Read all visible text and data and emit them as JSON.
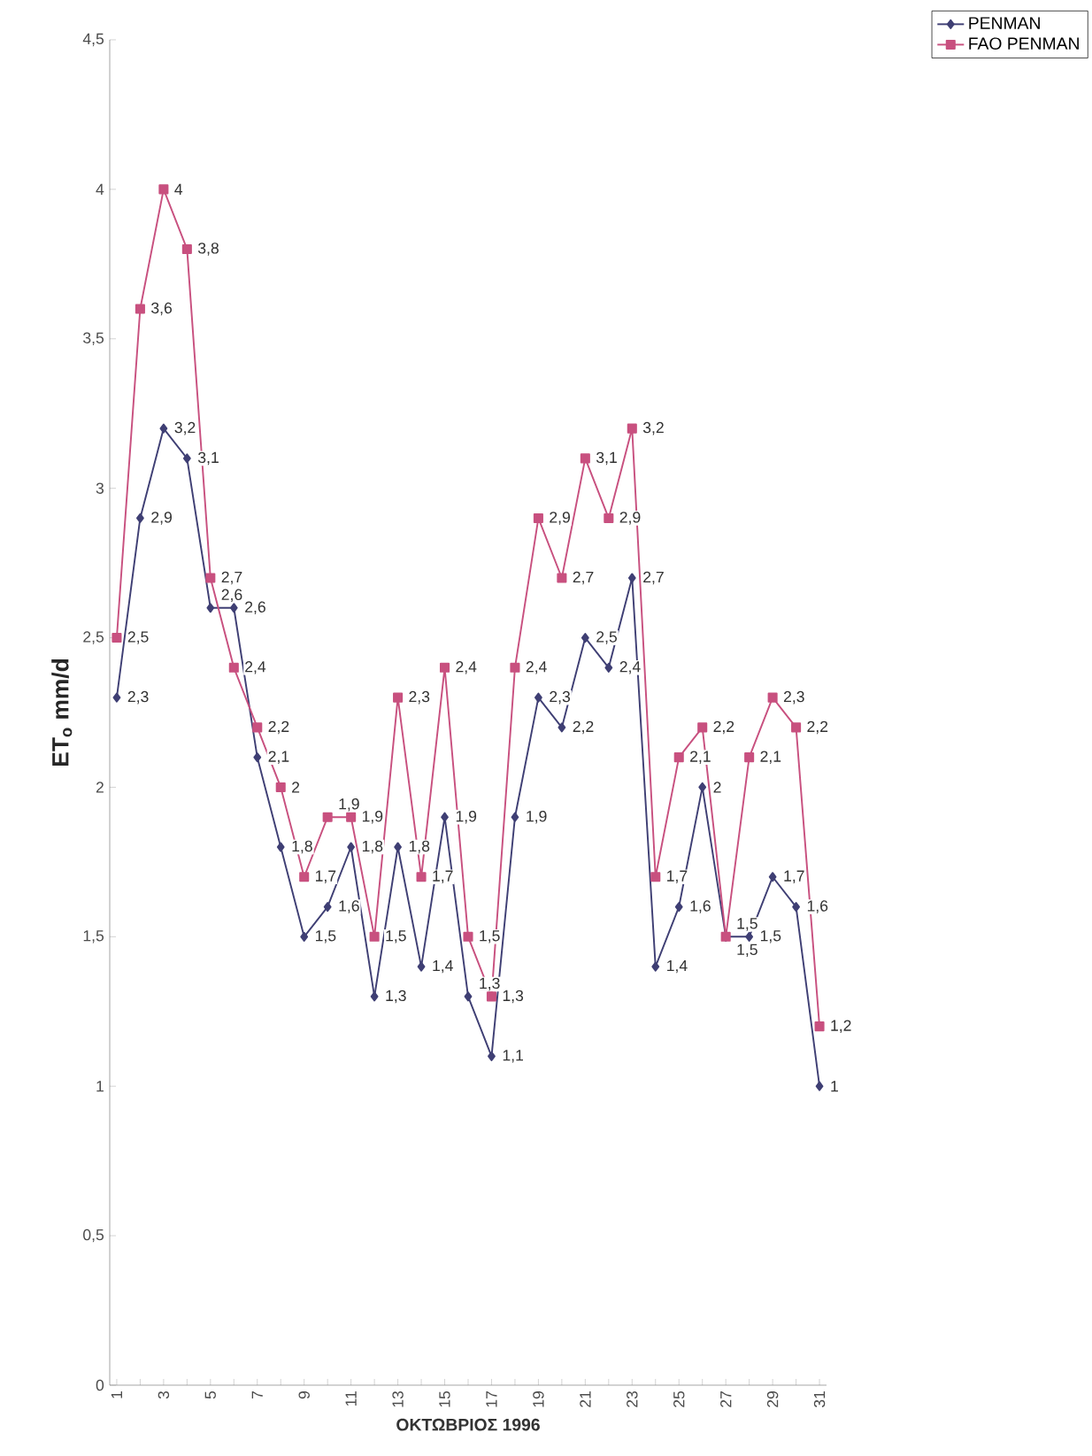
{
  "chart_data": {
    "type": "line",
    "xlabel": "ΟΚΤΩΒΡΙΟΣ 1996",
    "ylabel": "ET$_{o}$ mm/d",
    "categories": [
      "1",
      null,
      "3",
      null,
      "5",
      null,
      "7",
      null,
      "9",
      null,
      "11",
      null,
      "13",
      null,
      "15",
      null,
      "17",
      null,
      "19",
      null,
      "21",
      null,
      "23",
      null,
      "25",
      null,
      "27",
      null,
      "29",
      null,
      "31"
    ],
    "ylim": [
      0,
      4.5
    ],
    "yticks": [
      {
        "value": 0,
        "label": "0"
      },
      {
        "value": 0.5,
        "label": "0,5"
      },
      {
        "value": 1,
        "label": "1"
      },
      {
        "value": 1.5,
        "label": "1,5"
      },
      {
        "value": 2,
        "label": "2"
      },
      {
        "value": 2.5,
        "label": "2,5"
      },
      {
        "value": 3,
        "label": "3"
      },
      {
        "value": 3.5,
        "label": "3,5"
      },
      {
        "value": 4,
        "label": "4"
      },
      {
        "value": 4.5,
        "label": "4,5"
      }
    ],
    "grid": false,
    "legend": "top right",
    "series": [
      {
        "name": "PENMAN",
        "color": "#3f3f74",
        "marker": "diamond",
        "values": [
          2.3,
          2.9,
          3.2,
          3.1,
          2.6,
          2.6,
          2.1,
          1.8,
          1.5,
          1.6,
          1.8,
          1.3,
          1.8,
          1.4,
          1.9,
          1.3,
          1.1,
          1.9,
          2.3,
          2.2,
          2.5,
          2.4,
          2.7,
          1.4,
          1.6,
          2.0,
          1.5,
          1.5,
          1.7,
          1.6,
          1.0
        ],
        "value_labels": [
          "2,3",
          "2,9",
          "3,2",
          "3,1",
          "2,6",
          "2,6",
          "2,1",
          "1,8",
          "1,5",
          "1,6",
          "1,8",
          "1,3",
          "1,8",
          "1,4",
          "1,9",
          "1,3",
          "1,1",
          "1,9",
          "2,3",
          "2,2",
          "2,5",
          "2,4",
          "2,7",
          "1,4",
          "1,6",
          "2",
          "1,5",
          "1,5",
          "1,7",
          "1,6",
          "1"
        ]
      },
      {
        "name": "FAO PENMAN",
        "color": "#c8507f",
        "marker": "square",
        "values": [
          2.5,
          3.6,
          4.0,
          3.8,
          2.7,
          2.4,
          2.2,
          2.0,
          1.7,
          1.9,
          1.9,
          1.5,
          2.3,
          1.7,
          2.4,
          1.5,
          1.3,
          2.4,
          2.9,
          2.7,
          3.1,
          2.9,
          3.2,
          1.7,
          2.1,
          2.2,
          1.5,
          2.1,
          2.3,
          2.2,
          1.2
        ],
        "value_labels": [
          "2,5",
          "3,6",
          "4",
          "3,8",
          "2,7",
          "2,4",
          "2,2",
          "2",
          "1,7",
          "1,9",
          "1,9",
          "1,5",
          "2,3",
          "1,7",
          "2,4",
          "1,5",
          "1,3",
          "2,4",
          "2,9",
          "2,7",
          "3,1",
          "2,9",
          "3,2",
          "1,7",
          "2,1",
          "2,2",
          "1,5",
          "2,1",
          "2,3",
          "2,2",
          "1,2"
        ]
      }
    ]
  }
}
